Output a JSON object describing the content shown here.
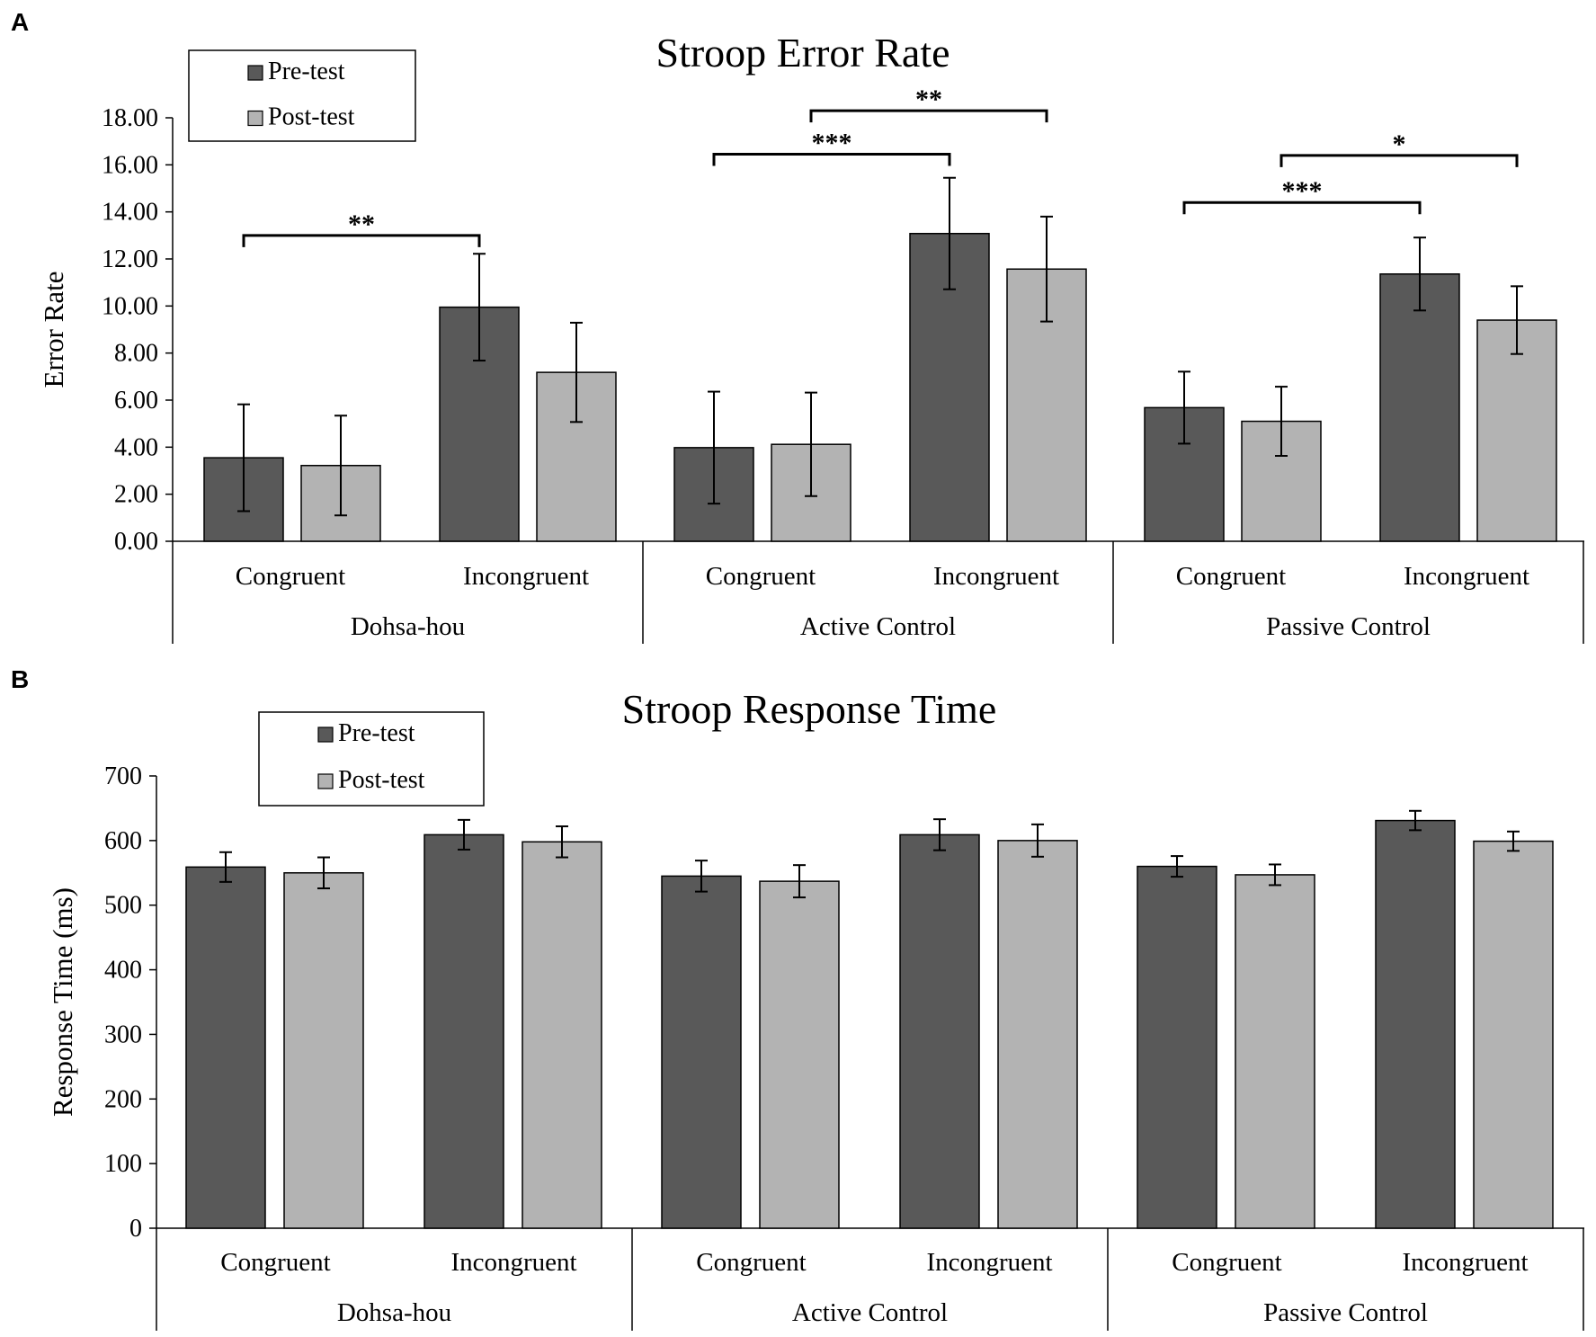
{
  "colors": {
    "pre": "#595959",
    "post": "#b3b3b3",
    "stroke": "#000000"
  },
  "chart_data": [
    {
      "panel": "A",
      "type": "bar",
      "title": "Stroop Error Rate",
      "ylabel": "Error Rate",
      "xlabel": "",
      "ylim": [
        0,
        18
      ],
      "yticks": [
        "0.00",
        "2.00",
        "4.00",
        "6.00",
        "8.00",
        "10.00",
        "12.00",
        "14.00",
        "16.00",
        "18.00"
      ],
      "groups": [
        "Dohsa-hou",
        "Active Control",
        "Passive Control"
      ],
      "conditions": [
        "Congruent",
        "Incongruent"
      ],
      "legend": {
        "position": "top-left",
        "labels": [
          "Pre-test",
          "Post-test"
        ]
      },
      "series": [
        {
          "name": "Pre-test",
          "values": [
            3.55,
            9.95,
            3.98,
            13.08,
            5.68,
            11.36
          ],
          "errors": [
            2.27,
            2.27,
            2.38,
            2.37,
            1.53,
            1.55
          ]
        },
        {
          "name": "Post-test",
          "values": [
            3.22,
            7.18,
            4.12,
            11.57,
            5.1,
            9.4
          ],
          "errors": [
            2.12,
            2.11,
            2.2,
            2.23,
            1.47,
            1.44
          ]
        }
      ],
      "significance": [
        {
          "label": "**",
          "from": [
            0,
            0,
            0
          ],
          "to": [
            0,
            1,
            0
          ],
          "y": 13.0
        },
        {
          "label": "***",
          "from": [
            1,
            0,
            0
          ],
          "to": [
            1,
            1,
            0
          ],
          "y": 16.45
        },
        {
          "label": "**",
          "from": [
            1,
            0,
            1
          ],
          "to": [
            1,
            1,
            1
          ],
          "y": 18.3
        },
        {
          "label": "***",
          "from": [
            2,
            0,
            0
          ],
          "to": [
            2,
            1,
            0
          ],
          "y": 14.4
        },
        {
          "label": "*",
          "from": [
            2,
            0,
            1
          ],
          "to": [
            2,
            1,
            1
          ],
          "y": 16.4
        }
      ]
    },
    {
      "panel": "B",
      "type": "bar",
      "title": "Stroop Response Time",
      "ylabel": "Response Time (ms)",
      "xlabel": "",
      "ylim": [
        0,
        700
      ],
      "yticks": [
        "0",
        "100",
        "200",
        "300",
        "400",
        "500",
        "600",
        "700"
      ],
      "groups": [
        "Dohsa-hou",
        "Active Control",
        "Passive Control"
      ],
      "conditions": [
        "Congruent",
        "Incongruent"
      ],
      "legend": {
        "position": "top-left",
        "labels": [
          "Pre-test",
          "Post-test"
        ]
      },
      "series": [
        {
          "name": "Pre-test",
          "values": [
            559,
            609,
            545,
            609,
            560,
            631
          ],
          "errors": [
            23,
            23,
            24,
            24,
            16,
            15
          ]
        },
        {
          "name": "Post-test",
          "values": [
            550,
            598,
            537,
            600,
            547,
            599
          ],
          "errors": [
            24,
            24,
            25,
            25,
            16,
            15
          ]
        }
      ],
      "significance": []
    }
  ]
}
